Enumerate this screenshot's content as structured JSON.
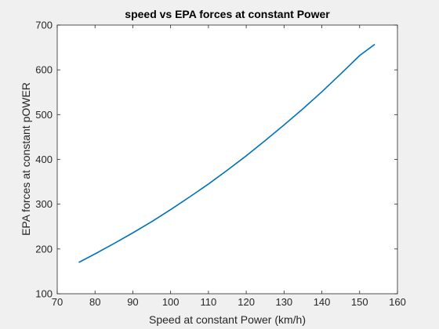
{
  "chart_data": {
    "type": "line",
    "title": "speed vs EPA forces at constant Power",
    "xlabel": "Speed at constant Power (km/h)",
    "ylabel": "EPA forces at constant pOWER",
    "xlim": [
      70,
      160
    ],
    "ylim": [
      100,
      700
    ],
    "xticks": [
      70,
      80,
      90,
      100,
      110,
      120,
      130,
      140,
      150,
      160
    ],
    "yticks": [
      100,
      200,
      300,
      400,
      500,
      600,
      700
    ],
    "grid": false,
    "legend": "none",
    "series": [
      {
        "color": "#0072bd",
        "x": [
          75.7,
          80,
          85,
          90,
          95,
          100,
          105,
          110,
          115,
          120,
          125,
          130,
          135,
          140,
          145,
          150,
          154
        ],
        "y": [
          170,
          189,
          212,
          236,
          261,
          288,
          316,
          345,
          376,
          408,
          442,
          477,
          513,
          551,
          591,
          632,
          657
        ]
      }
    ]
  }
}
